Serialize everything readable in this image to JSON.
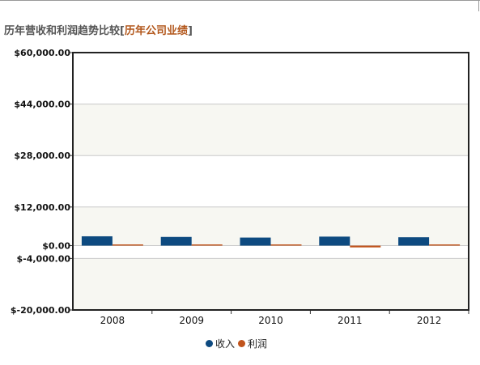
{
  "header": {
    "title": "历年营收和利润趋势比较",
    "bracket_open": "[",
    "link_label": "历年公司业绩",
    "bracket_close": "]"
  },
  "chart_data": {
    "type": "bar",
    "title": "",
    "xlabel": "",
    "ylabel": "",
    "categories": [
      "2008",
      "2009",
      "2010",
      "2011",
      "2012"
    ],
    "series": [
      {
        "name": "收入",
        "color": "#0d4a80",
        "values": [
          2900,
          2700,
          2500,
          2800,
          2600
        ]
      },
      {
        "name": "利润",
        "color": "#c0541c",
        "values": [
          180,
          150,
          120,
          -550,
          100
        ]
      }
    ],
    "ylim": [
      -20000,
      60000
    ],
    "y_ticks": [
      -20000,
      -4000,
      0,
      12000,
      28000,
      44000,
      60000
    ],
    "y_tick_labels": [
      "$-20,000.00",
      "$-4,000.00",
      "$0.00",
      "$12,000.00",
      "$28,000.00",
      "$44,000.00",
      "$60,000.00"
    ],
    "grid": true,
    "legend_position": "bottom-center"
  }
}
